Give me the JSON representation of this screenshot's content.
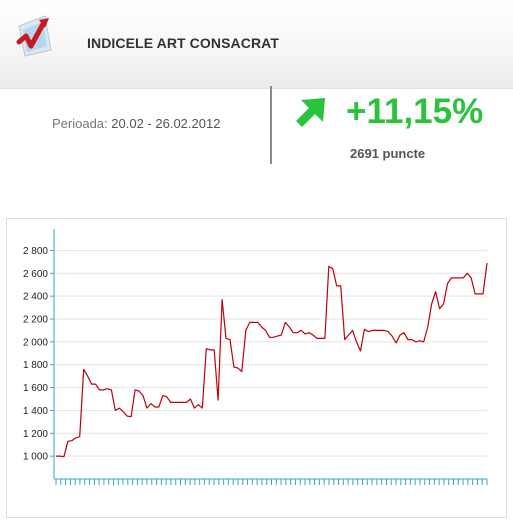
{
  "header": {
    "title": "INDICELE ART CONSACRAT",
    "logo_icon": "rising-chart-logo-icon"
  },
  "summary": {
    "period_label": "Perioada:",
    "period_value": "20.02 - 26.02.2012",
    "change": "+11,15%",
    "points": "2691 puncte",
    "trend_icon": "up-arrow-icon",
    "trend_color": "#2bc23c"
  },
  "chart_data": {
    "type": "line",
    "title": "",
    "xlabel": "",
    "ylabel": "",
    "ylim": [
      800,
      2900
    ],
    "yticks": [
      1000,
      1200,
      1400,
      1600,
      1800,
      2000,
      2200,
      2400,
      2600,
      2800
    ],
    "ytick_labels": [
      "1 000",
      "1 200",
      "1 400",
      "1 600",
      "1 800",
      "2 000",
      "2 200",
      "2 400",
      "2 600",
      "2 800"
    ],
    "x_tick_count": 90,
    "grid": true,
    "line_color": "#c0000a",
    "series": [
      {
        "values": [
          1000,
          1000,
          995,
          1130,
          1135,
          1160,
          1170,
          1760,
          1700,
          1630,
          1630,
          1580,
          1580,
          1590,
          1580,
          1400,
          1420,
          1390,
          1350,
          1345,
          1580,
          1570,
          1530,
          1420,
          1460,
          1430,
          1430,
          1530,
          1520,
          1470,
          1470,
          1470,
          1470,
          1470,
          1500,
          1420,
          1450,
          1420,
          1940,
          1930,
          1930,
          1490,
          2370,
          2030,
          2020,
          1780,
          1770,
          1740,
          2100,
          2170,
          2170,
          2170,
          2130,
          2100,
          2040,
          2040,
          2050,
          2060,
          2170,
          2130,
          2080,
          2080,
          2100,
          2070,
          2080,
          2060,
          2030,
          2030,
          2030,
          2660,
          2640,
          2490,
          2490,
          2020,
          2060,
          2100,
          2000,
          1920,
          2110,
          2090,
          2100,
          2100,
          2100,
          2100,
          2090,
          2050,
          1990,
          2060,
          2080,
          2020,
          2020,
          2000,
          2010,
          2000,
          2130,
          2330,
          2440,
          2290,
          2330,
          2510,
          2560,
          2560,
          2560,
          2560,
          2600,
          2560,
          2420,
          2420,
          2420,
          2690
        ]
      }
    ]
  }
}
